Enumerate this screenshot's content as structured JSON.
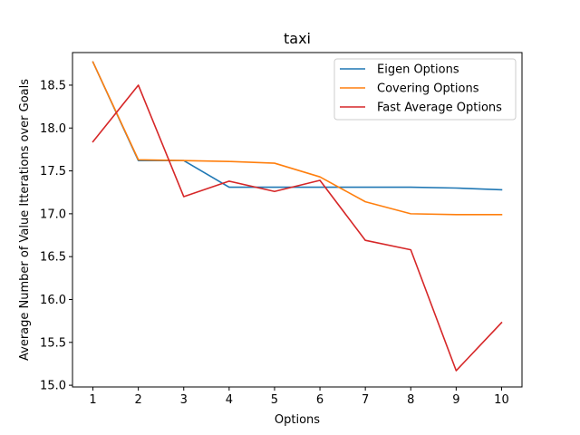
{
  "chart_data": {
    "type": "line",
    "title": "taxi",
    "xlabel": "Options",
    "ylabel": "Average Number of Value Itterations over Goals",
    "x": [
      1,
      2,
      3,
      4,
      5,
      6,
      7,
      8,
      9,
      10
    ],
    "xticks": [
      "1",
      "2",
      "3",
      "4",
      "5",
      "6",
      "7",
      "8",
      "9",
      "10"
    ],
    "yticks": [
      "15.0",
      "15.5",
      "16.0",
      "16.5",
      "17.0",
      "17.5",
      "18.0",
      "18.5"
    ],
    "xlim": [
      0.55,
      10.45
    ],
    "ylim": [
      14.98,
      18.88
    ],
    "grid": false,
    "legend_position": "top-right",
    "series": [
      {
        "name": "Eigen Options",
        "color": "#1f77b4",
        "values": [
          18.77,
          17.62,
          17.62,
          17.31,
          17.31,
          17.31,
          17.31,
          17.31,
          17.3,
          17.28
        ]
      },
      {
        "name": "Covering Options",
        "color": "#ff7f0e",
        "values": [
          18.77,
          17.63,
          17.62,
          17.61,
          17.59,
          17.43,
          17.14,
          17.0,
          16.99,
          16.99
        ]
      },
      {
        "name": "Fast Average Options",
        "color": "#d62728",
        "values": [
          17.84,
          18.5,
          17.2,
          17.38,
          17.26,
          17.39,
          16.69,
          16.58,
          15.17,
          15.73
        ]
      }
    ]
  }
}
